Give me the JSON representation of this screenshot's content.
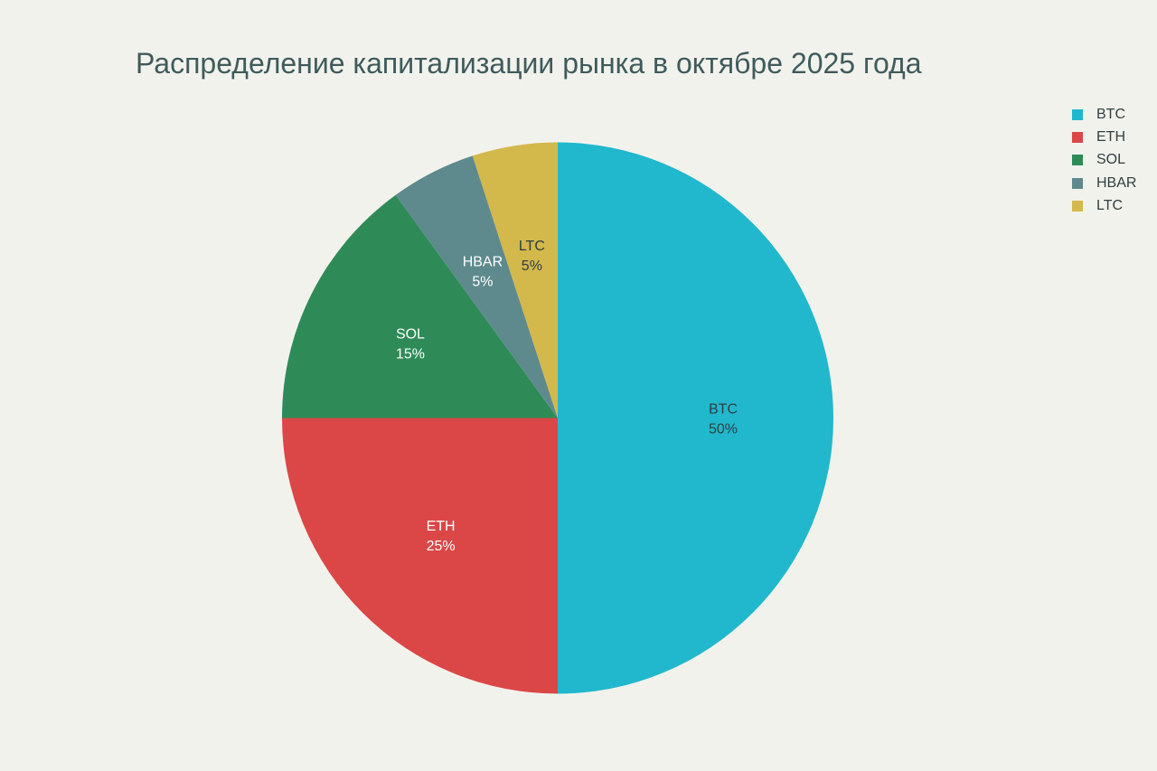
{
  "chart_data": {
    "type": "pie",
    "title": "Распределение капитализации рынка в октябре 2025 года",
    "categories": [
      "BTC",
      "ETH",
      "SOL",
      "HBAR",
      "LTC"
    ],
    "values": [
      50,
      25,
      15,
      5,
      5
    ],
    "value_labels": [
      "50%",
      "25%",
      "15%",
      "5%",
      "5%"
    ],
    "colors": [
      "#21b8cd",
      "#db4747",
      "#2e8b57",
      "#5e8a8e",
      "#d3b84c"
    ],
    "label_colors": [
      "#2f3f40",
      "#ffffff",
      "#ffffff",
      "#ffffff",
      "#2f3f40"
    ],
    "start_angle_deg": 0,
    "direction": "clockwise",
    "legend": {
      "position": "top-right"
    }
  }
}
